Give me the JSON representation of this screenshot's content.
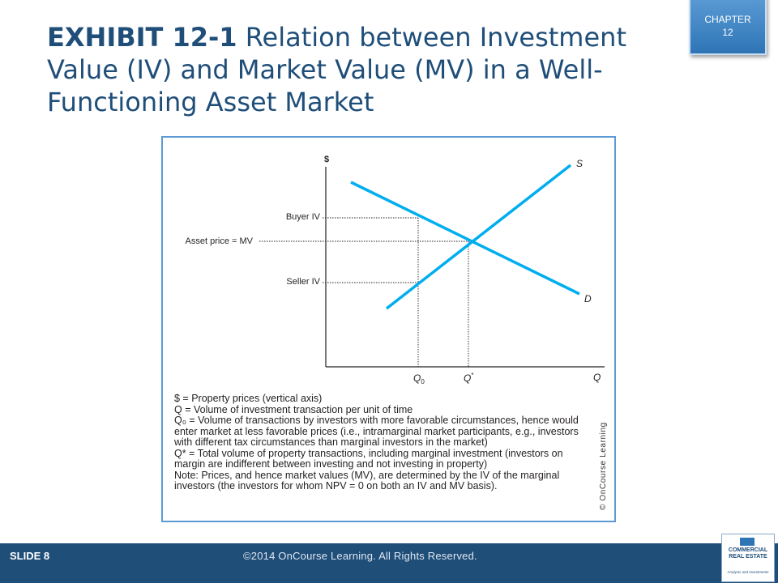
{
  "slide": {
    "title_bold": "EXHIBIT 12-1",
    "title_rest": " Relation between Investment Value (IV) and Market Value (MV) in a Well-Functioning Asset Market",
    "chapter_label": "CHAPTER",
    "chapter_number": "12"
  },
  "diagram": {
    "y_axis_label": "$",
    "x_axis_label": "Q",
    "supply_label": "S",
    "demand_label": "D",
    "buyer_iv": "Buyer IV",
    "asset_price": "Asset price = MV",
    "seller_iv": "Seller IV",
    "q0": "Q",
    "q0_sub": "0",
    "qstar": "Q",
    "qstar_sup": "*",
    "line_color": "#00aeef"
  },
  "notes": [
    "$ = Property prices (vertical axis)",
    "Q = Volume of investment transaction per unit of time",
    "Q₀ = Volume of transactions by investors with more favorable circumstances, hence would",
    "enter market at less favorable prices (i.e., intramarginal market participants, e.g., investors",
    "with different tax circumstances than marginal investors in the market)",
    "Q* = Total volume of property transactions, including marginal investment (investors on",
    "margin are indifferent between investing and not investing in property)",
    "Note: Prices, and hence market values (MV), are determined by the IV of the marginal",
    "investors (the investors for whom NPV = 0 on both an IV and MV basis)."
  ],
  "credit": "© OnCourse Learning",
  "footer": {
    "slide_number": "SLIDE 8",
    "copyright": "©2014 OnCourse Learning. All Rights Reserved."
  },
  "logo": {
    "line1": "COMMERCIAL",
    "line2": "REAL ESTATE",
    "line3": "Analysis and Investments"
  }
}
